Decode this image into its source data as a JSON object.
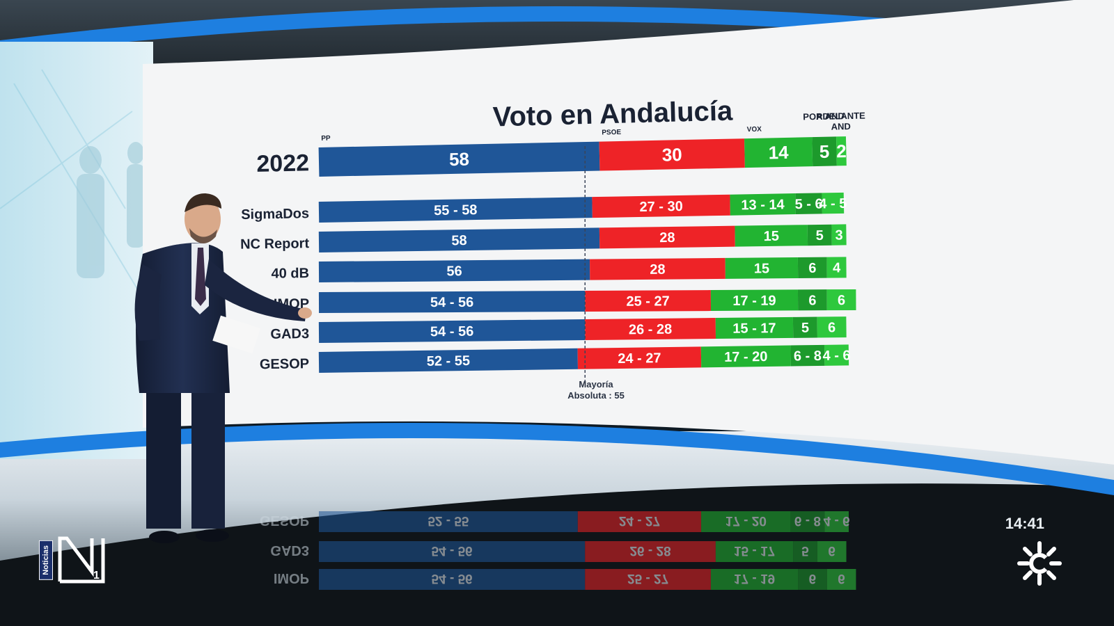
{
  "chart_data": {
    "type": "bar",
    "orientation": "horizontal-stacked",
    "title": "Voto en Andalucía",
    "majority": {
      "label_line1": "Mayoría",
      "label_line2": "Absoluta : 55",
      "value": 55
    },
    "parties": [
      {
        "name": "PP",
        "color": "#1f5698"
      },
      {
        "name": "PSOE",
        "color": "#ee2327"
      },
      {
        "name": "VOX",
        "color": "#22b432"
      },
      {
        "name": "POR AND",
        "color": "#1d9a2c"
      },
      {
        "name": "ADELANTE AND",
        "color": "#2ec83d"
      }
    ],
    "rows": [
      {
        "label": "2022",
        "values": [
          58,
          30,
          14,
          5,
          2
        ],
        "labels": [
          "58",
          "30",
          "14",
          "5",
          "2"
        ]
      },
      {
        "label": "SigmaDos",
        "values": [
          56.5,
          28.5,
          13.5,
          5.5,
          4.5
        ],
        "labels": [
          "55 - 58",
          "27 - 30",
          "13 - 14",
          "5 - 6",
          "4 - 5"
        ]
      },
      {
        "label": "NC Report",
        "values": [
          58,
          28,
          15,
          5,
          3
        ],
        "labels": [
          "58",
          "28",
          "15",
          "5",
          "3"
        ]
      },
      {
        "label": "40 dB",
        "values": [
          56,
          28,
          15,
          6,
          4
        ],
        "labels": [
          "56",
          "28",
          "15",
          "6",
          "4"
        ]
      },
      {
        "label": "IMOP",
        "values": [
          55,
          26,
          18,
          6,
          6
        ],
        "labels": [
          "54 - 56",
          "25 - 27",
          "17 - 19",
          "6",
          "6"
        ]
      },
      {
        "label": "GAD3",
        "values": [
          55,
          27,
          16,
          5,
          6
        ],
        "labels": [
          "54 - 56",
          "26 - 28",
          "15 - 17",
          "5",
          "6"
        ]
      },
      {
        "label": "GESOP",
        "values": [
          53.5,
          25.5,
          18.5,
          7,
          5
        ],
        "labels": [
          "52 - 55",
          "24 - 27",
          "17 - 20",
          "6 - 8",
          "4 - 6"
        ]
      }
    ]
  },
  "overlay": {
    "clock": "14:41",
    "channel_tag": "Noticias",
    "reflection_labels": [
      "GESOP",
      "GAD3",
      "IMOP"
    ]
  },
  "colors": {
    "screen_bg": "#f4f5f6",
    "stage_blue": "#1e7fe0",
    "title_navy": "#1a2233"
  }
}
